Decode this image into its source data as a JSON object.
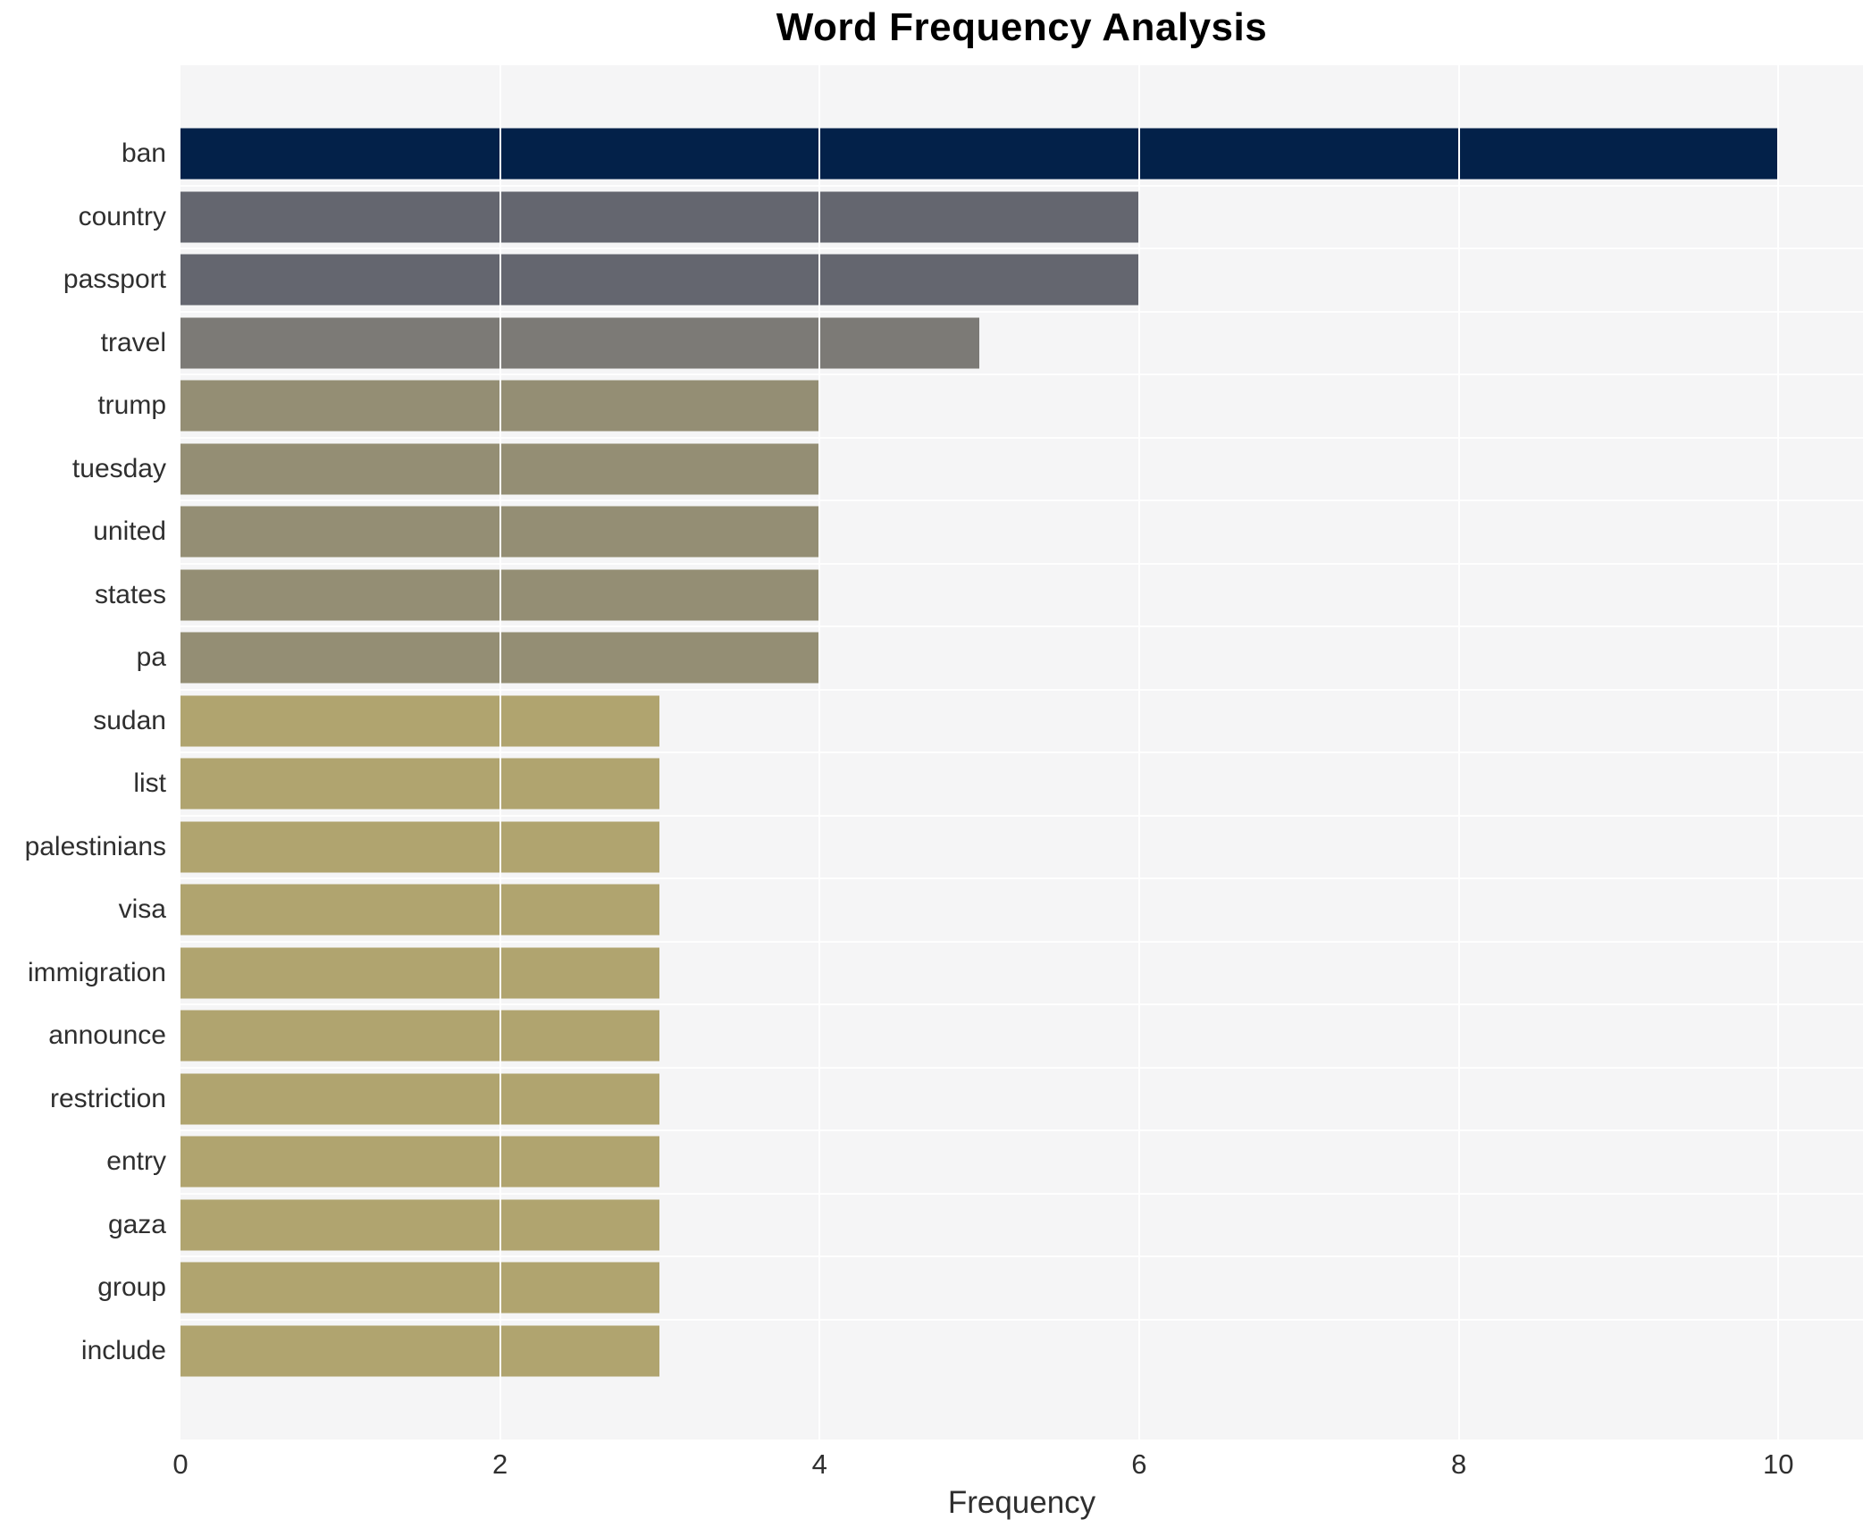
{
  "chart_data": {
    "type": "bar",
    "orientation": "horizontal",
    "title": "Word Frequency Analysis",
    "xlabel": "Frequency",
    "ylabel": "",
    "xlim": [
      0,
      10.53
    ],
    "xticks": [
      0,
      2,
      4,
      6,
      8,
      10
    ],
    "grid": "vertical white gridlines on light plot background",
    "legend": "none",
    "plot_bg_color": "#f5f5f6",
    "figure_bg_color": "#ffffff",
    "gridline_color": "#ffffff",
    "categories": [
      "ban",
      "country",
      "passport",
      "travel",
      "trump",
      "tuesday",
      "united",
      "states",
      "pa",
      "sudan",
      "list",
      "palestinians",
      "visa",
      "immigration",
      "announce",
      "restriction",
      "entry",
      "gaza",
      "group",
      "include"
    ],
    "values": [
      10,
      6,
      6,
      5,
      4,
      4,
      4,
      4,
      4,
      3,
      3,
      3,
      3,
      3,
      3,
      3,
      3,
      3,
      3,
      3
    ],
    "bar_colors": [
      "#032149",
      "#64666f",
      "#64666f",
      "#7c7a76",
      "#948e74",
      "#948e74",
      "#948e74",
      "#948e74",
      "#948e74",
      "#b0a46f",
      "#b0a46f",
      "#b0a46f",
      "#b0a46f",
      "#b0a46f",
      "#b0a46f",
      "#b0a46f",
      "#b0a46f",
      "#b0a46f",
      "#b0a46f",
      "#b0a46f"
    ]
  }
}
